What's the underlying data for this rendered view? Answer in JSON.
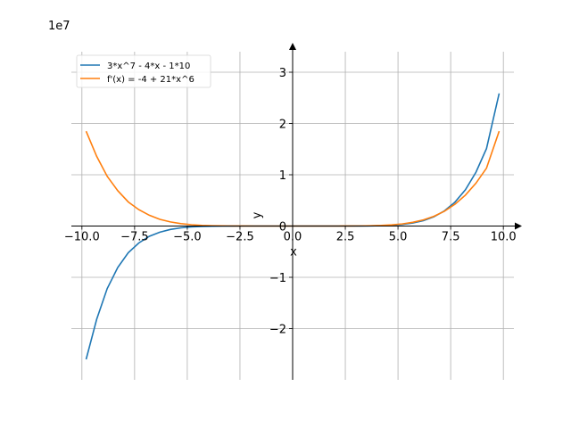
{
  "chart_data": {
    "type": "line",
    "title": "",
    "xlabel": "x",
    "ylabel": "y",
    "y_offset_text": "1e7",
    "xlim": [
      -10.5,
      10.5
    ],
    "ylim": [
      -3.0,
      3.4
    ],
    "y_units_scale": 10000000,
    "grid": true,
    "legend_position": "top-left",
    "x_ticks": [
      -10.0,
      -7.5,
      -5.0,
      -2.5,
      0.0,
      2.5,
      5.0,
      7.5,
      10.0
    ],
    "x_tick_labels": [
      "−10.0",
      "−7.5",
      "−5.0",
      "−2.5",
      "0.0",
      "2.5",
      "5.0",
      "7.5",
      "10.0"
    ],
    "y_ticks": [
      -2,
      -1,
      0,
      1,
      2,
      3
    ],
    "y_tick_labels": [
      "−2",
      "−1",
      "0",
      "1",
      "2",
      "3"
    ],
    "x": [
      -9.8,
      -9.3,
      -8.8,
      -8.3,
      -7.8,
      -7.3,
      -6.8,
      -6.3,
      -5.8,
      -5.3,
      -4.8,
      -4.3,
      -3.8,
      -3.3,
      -2.8,
      -2.3,
      -1.8,
      -1.3,
      -0.8,
      -0.3,
      0.2,
      0.7,
      1.2,
      1.7,
      2.2,
      2.7,
      3.2,
      3.7,
      4.2,
      4.7,
      5.2,
      5.7,
      6.2,
      6.7,
      7.2,
      7.7,
      8.2,
      8.7,
      9.2,
      9.8
    ],
    "series": [
      {
        "name": "3*x^7 - 4*x - 1*10",
        "color": "#1f77b4",
        "values": [
          -2.6,
          -1.82,
          -1.22,
          -0.81,
          -0.52,
          -0.33,
          -0.2,
          -0.12,
          -0.066,
          -0.035,
          -0.017,
          -0.0082,
          -0.0036,
          -0.0014,
          -0.0005,
          -0.0001,
          -2e-05,
          0,
          0,
          0,
          0,
          0,
          0,
          0,
          7e-05,
          0.00031,
          0.001,
          0.0028,
          0.0069,
          0.0152,
          0.031,
          0.0585,
          0.105,
          0.18,
          0.295,
          0.465,
          0.708,
          1.05,
          1.512,
          2.587
        ]
      },
      {
        "name": "f'(x) = -4 + 21*x^6",
        "color": "#ff7f0e",
        "values": [
          1.85,
          1.36,
          0.97,
          0.69,
          0.47,
          0.32,
          0.21,
          0.13,
          0.08,
          0.047,
          0.026,
          0.013,
          0.0063,
          0.0027,
          0.001,
          0.0003,
          7e-05,
          0,
          0,
          0,
          0,
          0,
          0,
          0,
          0.00024,
          0.00081,
          0.0022,
          0.0054,
          0.0115,
          0.0226,
          0.0416,
          0.0723,
          0.119,
          0.189,
          0.288,
          0.425,
          0.603,
          0.836,
          1.13,
          1.85
        ]
      }
    ]
  }
}
